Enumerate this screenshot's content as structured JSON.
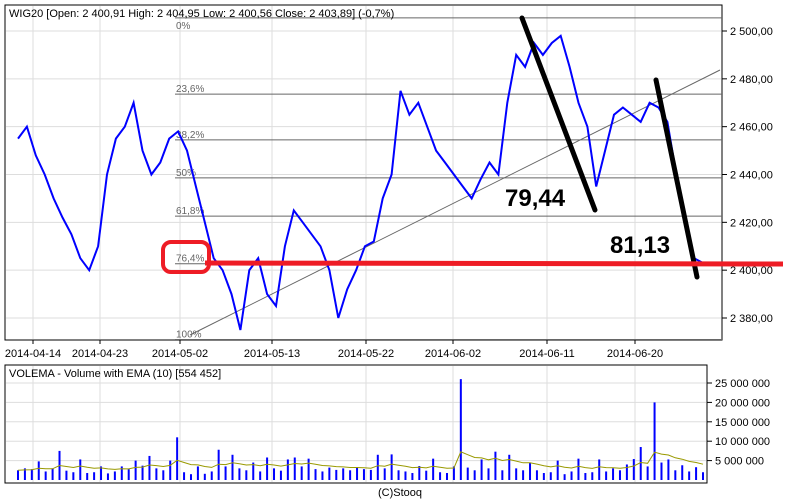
{
  "footer": "(C)Stooq",
  "chart_data": [
    {
      "type": "line",
      "title": "WIG20 [Open: 2 400,91  High: 2 404,95  Low: 2 400,56  Close: 2 403,89] (-0,7%)",
      "x_ticks": [
        "2014-04-14",
        "2014-04-23",
        "2014-05-02",
        "2014-05-13",
        "2014-05-22",
        "2014-06-02",
        "2014-06-11",
        "2014-06-20"
      ],
      "x_range": [
        "2014-04-11",
        "2014-06-27"
      ],
      "y_ticks": [
        2380,
        2400,
        2420,
        2440,
        2460,
        2480,
        2500
      ],
      "y_tick_labels": [
        "2 380,00",
        "2 400,00",
        "2 420,00",
        "2 440,00",
        "2 460,00",
        "2 480,00",
        "2 500,00"
      ],
      "ylim": [
        2368,
        2510
      ],
      "grid": true,
      "series_color": "#0000ff",
      "values": [
        2455,
        2460,
        2448,
        2440,
        2430,
        2422,
        2415,
        2405,
        2400,
        2410,
        2440,
        2455,
        2460,
        2470,
        2450,
        2440,
        2445,
        2455,
        2458,
        2450,
        2435,
        2420,
        2405,
        2400,
        2390,
        2375,
        2400,
        2405,
        2390,
        2385,
        2410,
        2425,
        2420,
        2415,
        2410,
        2400,
        2380,
        2392,
        2400,
        2410,
        2412,
        2430,
        2440,
        2475,
        2465,
        2470,
        2460,
        2450,
        2445,
        2440,
        2435,
        2430,
        2438,
        2445,
        2440,
        2470,
        2490,
        2485,
        2495,
        2490,
        2495,
        2498,
        2485,
        2470,
        2460,
        2435,
        2450,
        2465,
        2468,
        2465,
        2462,
        2470,
        2468,
        2462,
        2440,
        2420,
        2405,
        2403
      ],
      "fibonacci": [
        {
          "label": "0%",
          "value": 2505.5
        },
        {
          "label": "23,6%",
          "value": 2473.6
        },
        {
          "label": "38,2%",
          "value": 2454.5
        },
        {
          "label": "50%",
          "value": 2438.6
        },
        {
          "label": "61,8%",
          "value": 2422.6
        },
        {
          "label": "76,4%",
          "value": 2402.7
        },
        {
          "label": "100%",
          "value": 2371
        }
      ],
      "annotations": {
        "labels": [
          "79,44",
          "81,13"
        ],
        "drawn_line_color": "#000000",
        "highlight_color": "#ee1c25",
        "support_level": 2402
      }
    },
    {
      "type": "bar",
      "title": "VOLEMA - Volume with EMA (10) [554 452]",
      "bar_color": "#0000ff",
      "ema_color": "#999900",
      "ema_period": 10,
      "y_ticks": [
        5000000,
        10000000,
        15000000,
        20000000,
        25000000
      ],
      "y_tick_labels": [
        "5 000 000",
        "10 000 000",
        "15 000 000",
        "20 000 000",
        "25 000 000"
      ],
      "ylim": [
        0,
        28000000
      ],
      "values_millions": [
        2.5,
        3,
        2.8,
        4.8,
        2.2,
        3,
        7.5,
        2.4,
        2,
        5.3,
        1.8,
        2,
        3.5,
        1.7,
        2.2,
        3.5,
        2.8,
        5,
        3.7,
        6.2,
        3,
        2.5,
        5,
        11,
        2,
        1.5,
        3.5,
        1.6,
        2.2,
        7.8,
        3.5,
        6.5,
        3,
        2.5,
        4.5,
        2.2,
        5.8,
        3,
        2.4,
        5.3,
        5.8,
        3.5,
        5.5,
        2.8,
        2.2,
        3.2,
        2.6,
        3,
        2.5,
        3.3,
        2.8,
        2.6,
        6.5,
        3,
        6.6,
        2.5,
        2.2,
        1.8,
        3.6,
        2.4,
        5.5,
        2,
        1.8,
        3.5,
        26,
        3.2,
        2.5,
        5.3,
        3,
        7.3,
        2.5,
        6.5,
        3,
        2.5,
        4.5,
        2.5,
        1.8,
        2,
        5,
        1.5,
        2.2,
        5.5,
        1.8,
        2,
        5.3,
        2.2,
        3,
        2.5,
        4,
        5.4,
        8.5,
        3.5,
        20,
        4.5,
        5.3,
        2.5,
        3.8,
        2.2,
        3.3,
        2
      ]
    }
  ]
}
